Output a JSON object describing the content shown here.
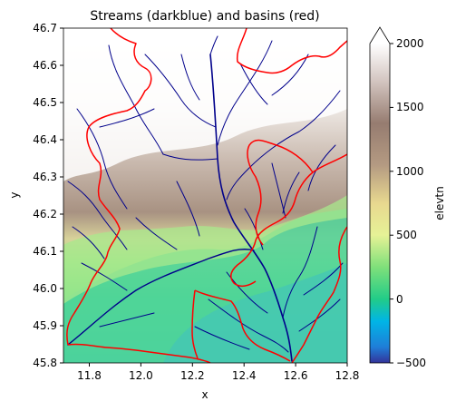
{
  "title": "Streams (darkblue) and basins (red)",
  "xlabel": "x",
  "ylabel": "y",
  "x_ticks": [
    "11.8",
    "12.0",
    "12.2",
    "12.4",
    "12.6",
    "12.8"
  ],
  "y_ticks": [
    "45.8",
    "45.9",
    "46.0",
    "46.1",
    "46.2",
    "46.3",
    "46.4",
    "46.5",
    "46.6",
    "46.7"
  ],
  "colorbar": {
    "label": "elevtn",
    "ticks": [
      "−500",
      "0",
      "500",
      "1000",
      "1500",
      "2000"
    ],
    "extend": "max",
    "colormap": "terrain",
    "range": [
      -500,
      2000
    ]
  },
  "colors": {
    "stream": "#00008b",
    "basin": "#ff0000"
  },
  "chart_data": {
    "type": "heatmap",
    "title": "Streams (darkblue) and basins (red)",
    "xlabel": "x",
    "ylabel": "y",
    "xlim": [
      11.7,
      12.8
    ],
    "ylim": [
      45.8,
      46.7
    ],
    "colorbar_label": "elevtn",
    "colorbar_range": [
      -500,
      2000
    ]
  }
}
